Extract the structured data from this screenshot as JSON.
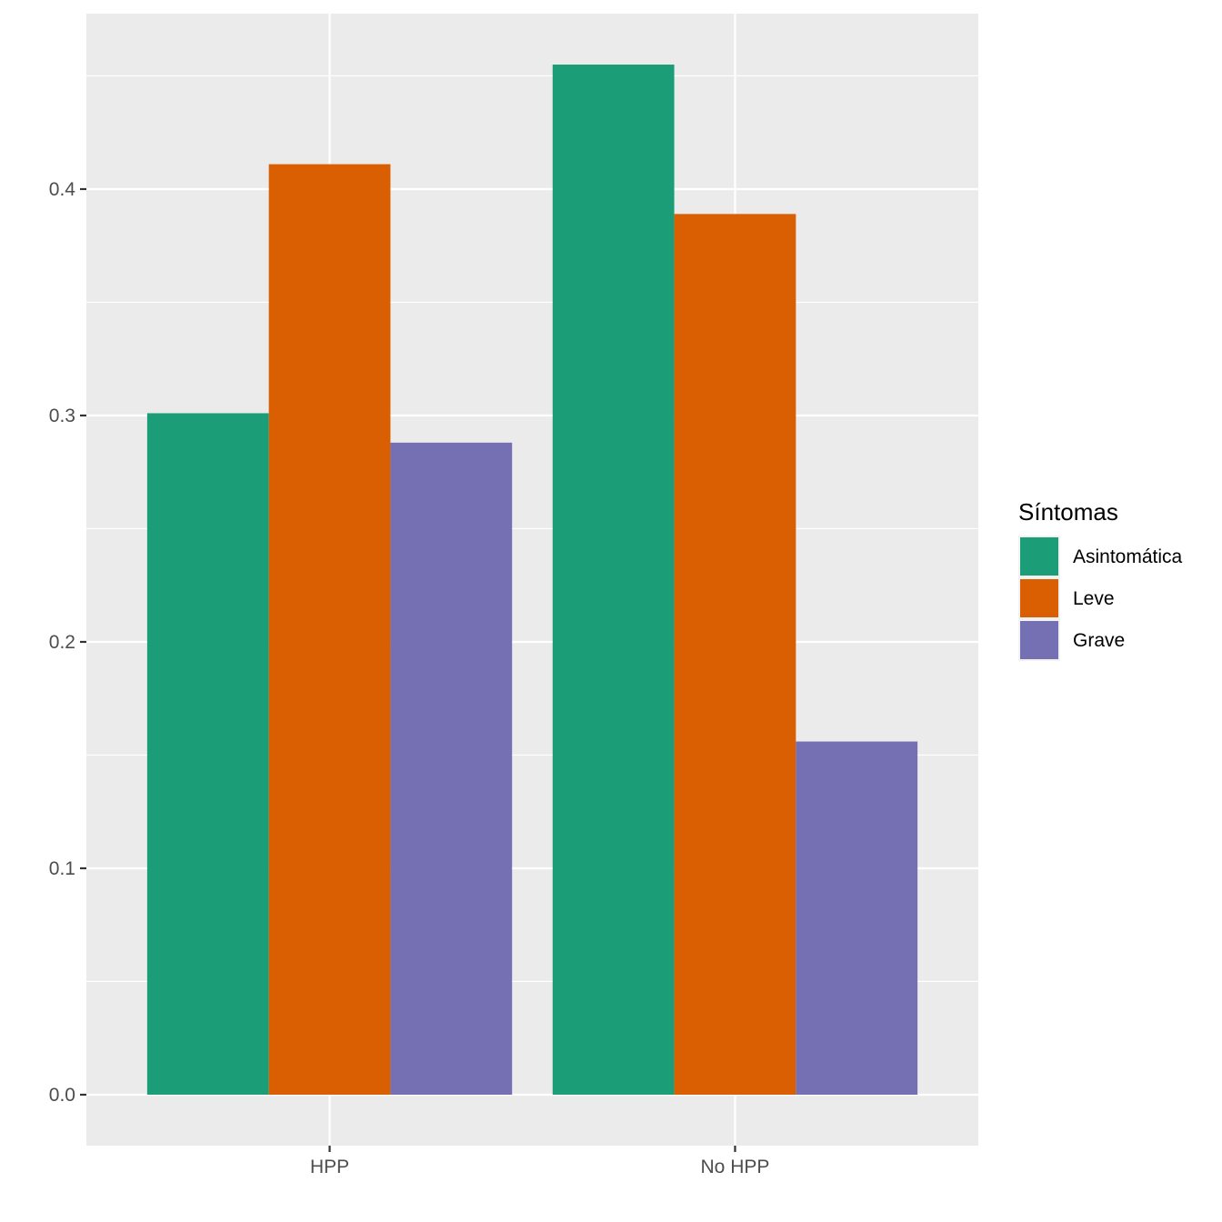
{
  "chart_data": {
    "type": "bar",
    "title": "",
    "xlabel": "",
    "ylabel": "",
    "categories": [
      "HPP",
      "No HPP"
    ],
    "series": [
      {
        "name": "Asintomática",
        "color": "#1B9E77",
        "values": [
          0.301,
          0.455
        ]
      },
      {
        "name": "Leve",
        "color": "#D95F02",
        "values": [
          0.411,
          0.389
        ]
      },
      {
        "name": "Grave",
        "color": "#7570B3",
        "values": [
          0.288,
          0.156
        ]
      }
    ],
    "ylim": [
      -0.0225,
      0.4775
    ],
    "yticks": [
      {
        "value": 0.0,
        "label": "0.0"
      },
      {
        "value": 0.1,
        "label": "0.1"
      },
      {
        "value": 0.2,
        "label": "0.2"
      },
      {
        "value": 0.3,
        "label": "0.3"
      },
      {
        "value": 0.4,
        "label": "0.4"
      }
    ],
    "grid": true,
    "legend": {
      "title": "Síntomas",
      "position": "right"
    }
  }
}
